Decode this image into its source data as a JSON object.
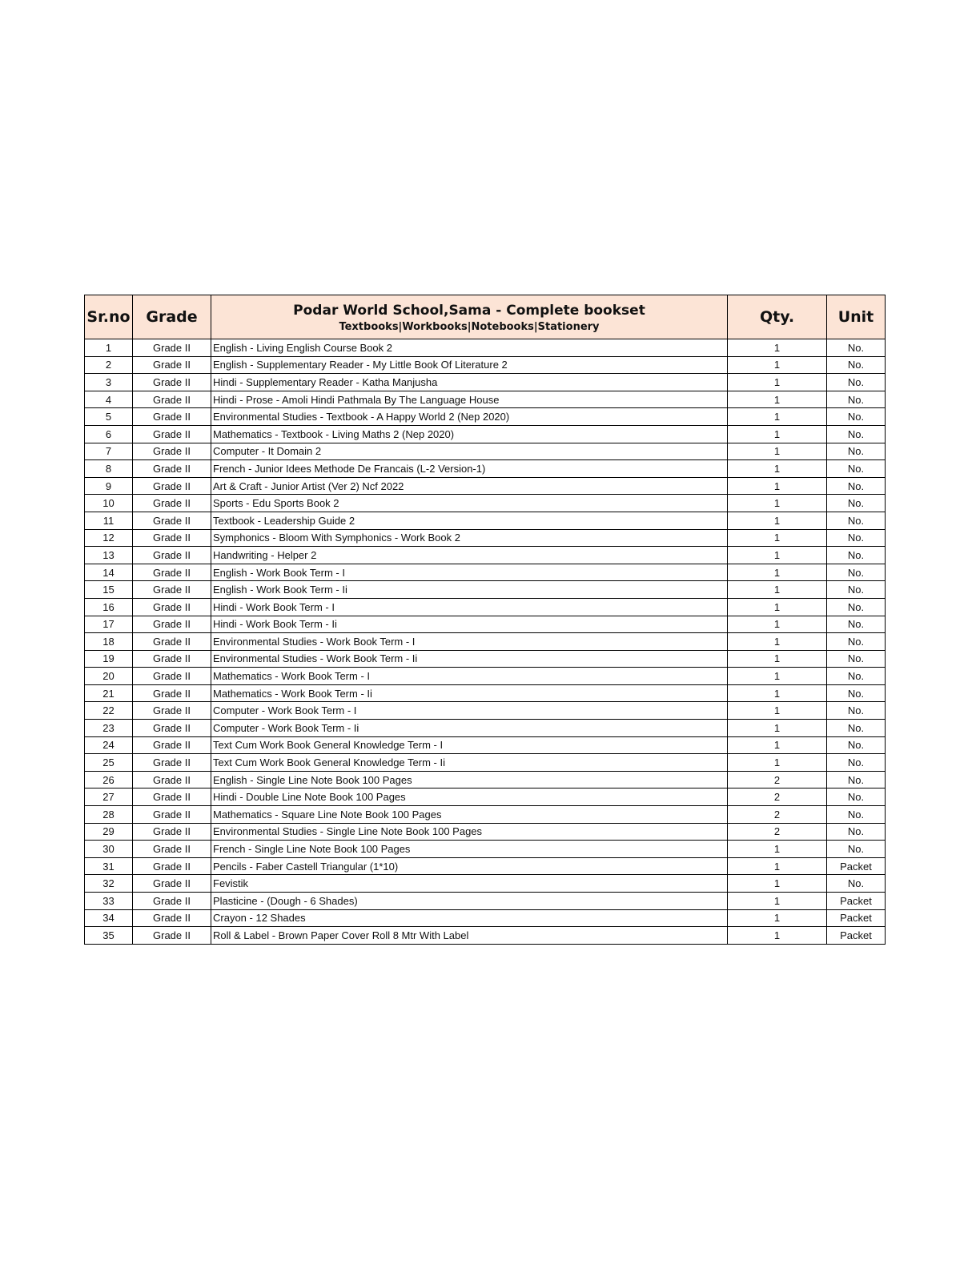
{
  "table": {
    "headers": {
      "srno": "Sr.no",
      "grade": "Grade",
      "title": "Podar World School,Sama - Complete bookset",
      "subtitle": "Textbooks|Workbooks|Notebooks|Stationery",
      "qty": "Qty.",
      "unit": "Unit"
    },
    "rows": [
      [
        "1",
        "Grade II",
        "English - Living English Course Book 2",
        "1",
        "No."
      ],
      [
        "2",
        "Grade II",
        "English - Supplementary Reader - My Little Book Of Literature 2",
        "1",
        "No."
      ],
      [
        "3",
        "Grade II",
        "Hindi - Supplementary Reader -  Katha Manjusha",
        "1",
        "No."
      ],
      [
        "4",
        "Grade II",
        "Hindi - Prose - Amoli Hindi Pathmala By The Language House",
        "1",
        "No."
      ],
      [
        "5",
        "Grade II",
        "Environmental Studies - Textbook - A Happy World 2 (Nep 2020)",
        "1",
        "No."
      ],
      [
        "6",
        "Grade II",
        "Mathematics - Textbook - Living Maths 2 (Nep 2020)",
        "1",
        "No."
      ],
      [
        "7",
        "Grade II",
        "Computer - It Domain 2",
        "1",
        "No."
      ],
      [
        "8",
        "Grade II",
        "French - Junior Idees Methode De Francais (L-2 Version-1)",
        "1",
        "No."
      ],
      [
        "9",
        "Grade II",
        "Art & Craft - Junior Artist (Ver 2) Ncf 2022",
        "1",
        "No."
      ],
      [
        "10",
        "Grade II",
        "Sports - Edu Sports Book  2",
        "1",
        "No."
      ],
      [
        "11",
        "Grade II",
        "Textbook - Leadership Guide 2",
        "1",
        "No."
      ],
      [
        "12",
        "Grade II",
        "Symphonics -  Bloom With Symphonics - Work Book 2",
        "1",
        "No."
      ],
      [
        "13",
        "Grade II",
        "Handwriting - Helper 2",
        "1",
        "No."
      ],
      [
        "14",
        "Grade II",
        "English - Work Book Term - I",
        "1",
        "No."
      ],
      [
        "15",
        "Grade II",
        "English - Work Book Term - Ii",
        "1",
        "No."
      ],
      [
        "16",
        "Grade II",
        "Hindi - Work Book Term - I",
        "1",
        "No."
      ],
      [
        "17",
        "Grade II",
        "Hindi - Work Book Term - Ii",
        "1",
        "No."
      ],
      [
        "18",
        "Grade II",
        "Environmental Studies - Work Book Term - I",
        "1",
        "No."
      ],
      [
        "19",
        "Grade II",
        "Environmental Studies - Work Book Term - Ii",
        "1",
        "No."
      ],
      [
        "20",
        "Grade II",
        "Mathematics - Work Book  Term - I",
        "1",
        "No."
      ],
      [
        "21",
        "Grade II",
        "Mathematics - Work Book  Term - Ii",
        "1",
        "No."
      ],
      [
        "22",
        "Grade II",
        "Computer - Work Book Term - I",
        "1",
        "No."
      ],
      [
        "23",
        "Grade II",
        "Computer - Work Book Term - Ii",
        "1",
        "No."
      ],
      [
        "24",
        "Grade II",
        "Text Cum Work Book General Knowledge  Term - I",
        "1",
        "No."
      ],
      [
        "25",
        "Grade II",
        "Text Cum Work Book General Knowledge  Term - Ii",
        "1",
        "No."
      ],
      [
        "26",
        "Grade II",
        "English - Single Line Note Book 100 Pages",
        "2",
        "No."
      ],
      [
        "27",
        "Grade II",
        "Hindi - Double Line Note Book 100 Pages",
        "2",
        "No."
      ],
      [
        "28",
        "Grade II",
        "Mathematics - Square Line Note Book 100 Pages",
        "2",
        "No."
      ],
      [
        "29",
        "Grade II",
        "Environmental Studies - Single Line  Note Book 100 Pages",
        "2",
        "No."
      ],
      [
        "30",
        "Grade II",
        "French - Single Line Note Book 100 Pages",
        "1",
        "No."
      ],
      [
        "31",
        "Grade II",
        "Pencils - Faber Castell Triangular (1*10)",
        "1",
        "Packet"
      ],
      [
        "32",
        "Grade II",
        "Fevistik",
        "1",
        "No."
      ],
      [
        "33",
        "Grade II",
        "Plasticine - (Dough - 6 Shades)",
        "1",
        "Packet"
      ],
      [
        "34",
        "Grade II",
        "Crayon - 12 Shades",
        "1",
        "Packet"
      ],
      [
        "35",
        "Grade II",
        "Roll & Label - Brown Paper Cover Roll 8 Mtr With Label",
        "1",
        "Packet"
      ]
    ]
  }
}
